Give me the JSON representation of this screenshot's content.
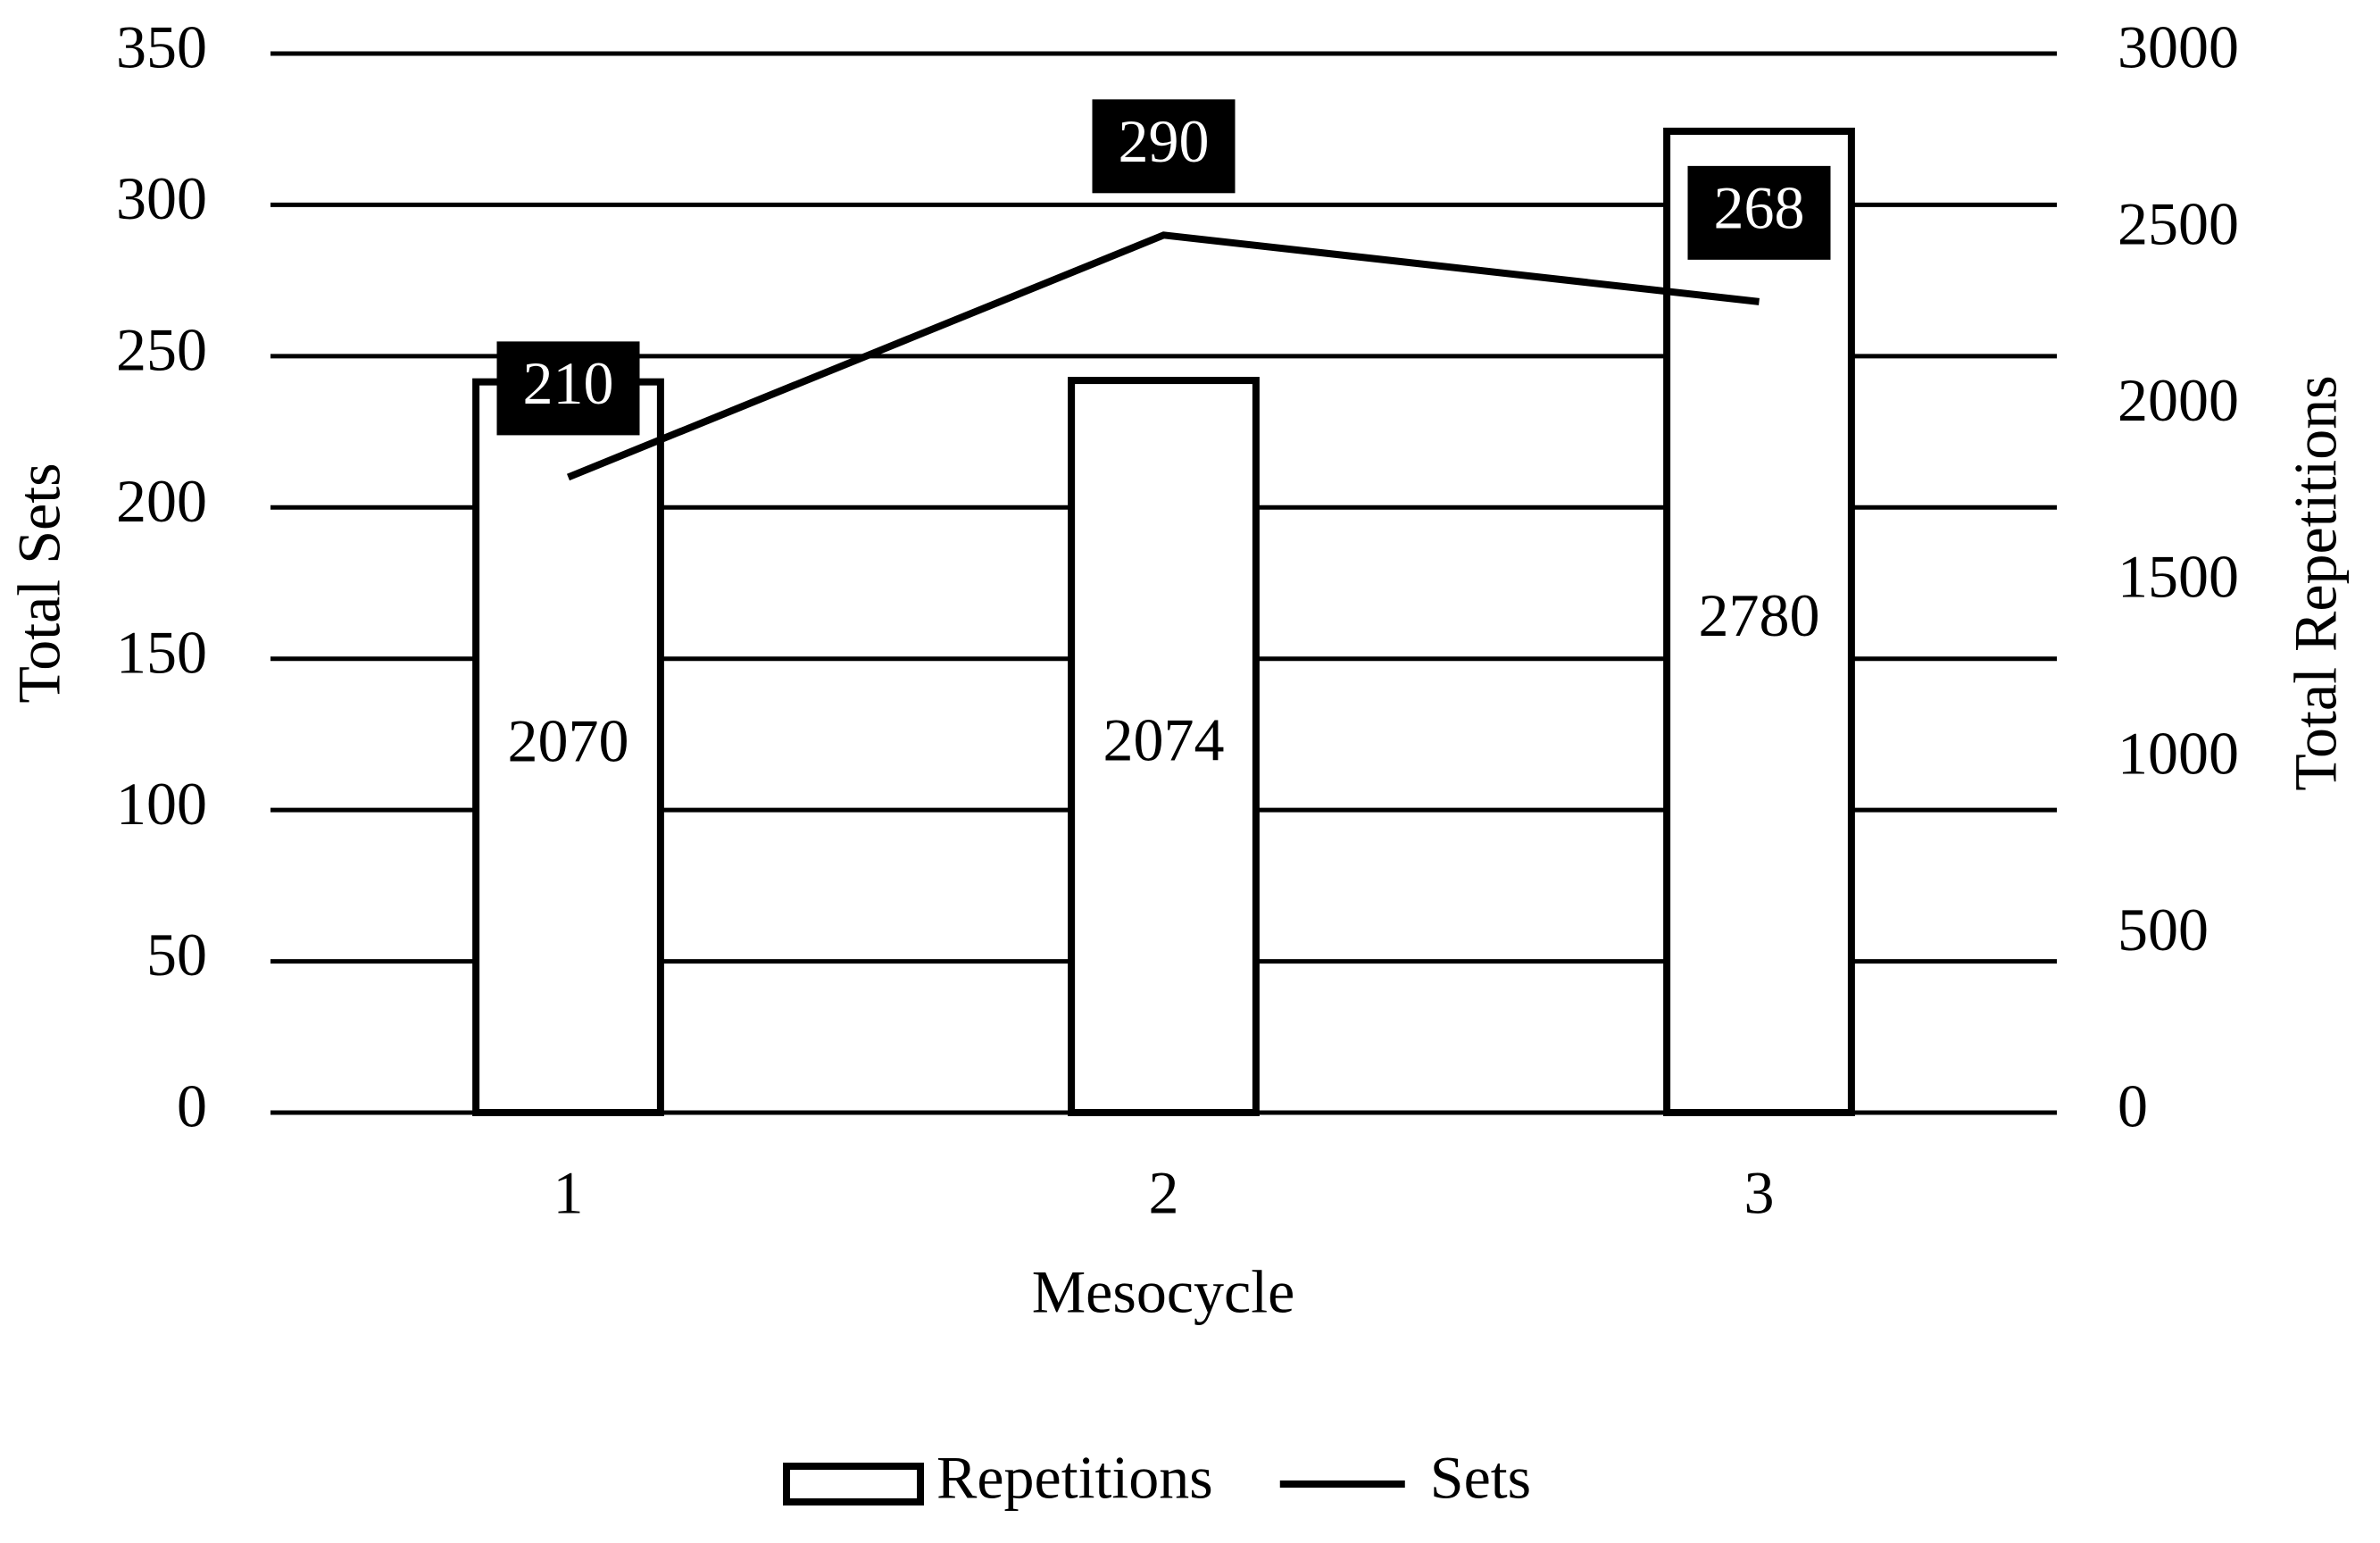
{
  "chart_data": {
    "type": "combo",
    "categories": [
      "1",
      "2",
      "3"
    ],
    "x_label": "Mesocycle",
    "y_label": "Total Sets",
    "y2_label": "Total Repetitions",
    "ylim": [
      0,
      350
    ],
    "yticks": [
      0,
      50,
      100,
      150,
      200,
      250,
      300,
      350
    ],
    "y2lim": [
      0,
      3000
    ],
    "y2ticks": [
      0,
      500,
      1000,
      1500,
      2000,
      2500,
      3000
    ],
    "grid": true,
    "legend": "bottom",
    "series": [
      {
        "name": "Repetitions",
        "type": "bar",
        "axis": "y2",
        "color": "#ffffff",
        "edgecolor": "#000000",
        "values": [
          2070,
          2074,
          2780
        ]
      },
      {
        "name": "Sets",
        "type": "line",
        "axis": "y",
        "color": "#000000",
        "values": [
          210,
          290,
          268
        ]
      }
    ]
  }
}
